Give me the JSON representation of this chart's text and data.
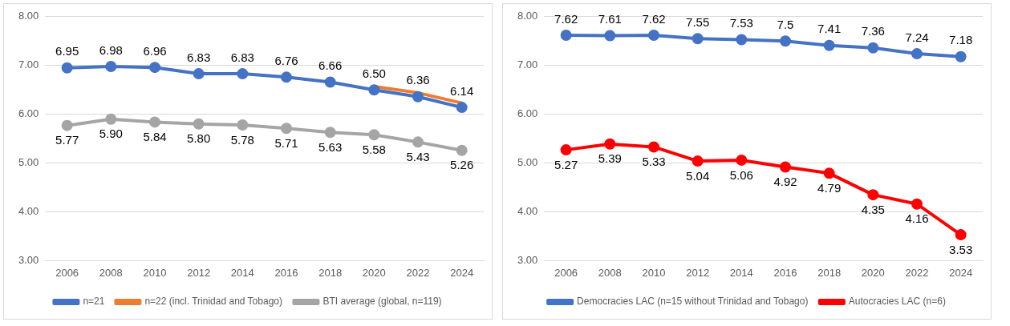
{
  "chart_data": [
    {
      "type": "line",
      "categories": [
        "2006",
        "2008",
        "2010",
        "2012",
        "2014",
        "2016",
        "2018",
        "2020",
        "2022",
        "2024"
      ],
      "ylim": [
        3,
        8
      ],
      "yticks": [
        {
          "value": 3,
          "label": "3.00"
        },
        {
          "value": 4,
          "label": "4.00"
        },
        {
          "value": 5,
          "label": "5.00"
        },
        {
          "value": 6,
          "label": "6.00"
        },
        {
          "value": 7,
          "label": "7.00"
        },
        {
          "value": 8,
          "label": "8.00"
        }
      ],
      "grid": "y",
      "legend": "bottom",
      "marker": "circle",
      "line_style": "solid",
      "series": [
        {
          "name": "n=21",
          "color": "#4472c4",
          "values": [
            6.95,
            6.98,
            6.96,
            6.83,
            6.83,
            6.76,
            6.66,
            6.5,
            6.36,
            6.14
          ],
          "value_labels": [
            "6.95",
            "6.98",
            "6.96",
            "6.83",
            "6.83",
            "6.76",
            "6.66",
            "6.50",
            "6.36",
            "6.14"
          ]
        },
        {
          "name": "n=22 (incl. Trinidad and Tobago)",
          "color": "#ed7d31",
          "marker": "none",
          "values": [
            null,
            null,
            null,
            null,
            null,
            null,
            null,
            6.57,
            6.44,
            6.23
          ]
        },
        {
          "name": "BTI average (global, n=119)",
          "color": "#a5a5a5",
          "values": [
            5.77,
            5.9,
            5.84,
            5.8,
            5.78,
            5.71,
            5.63,
            5.58,
            5.43,
            5.26
          ],
          "value_labels": [
            "5.77",
            "5.90",
            "5.84",
            "5.80",
            "5.78",
            "5.71",
            "5.63",
            "5.58",
            "5.43",
            "5.26"
          ]
        }
      ]
    },
    {
      "type": "line",
      "categories": [
        "2006",
        "2008",
        "2010",
        "2012",
        "2014",
        "2016",
        "2018",
        "2020",
        "2022",
        "2024"
      ],
      "ylim": [
        3,
        8
      ],
      "yticks": [
        {
          "value": 3,
          "label": "3.00"
        },
        {
          "value": 4,
          "label": "4.00"
        },
        {
          "value": 5,
          "label": "5.00"
        },
        {
          "value": 6,
          "label": "6.00"
        },
        {
          "value": 7,
          "label": "7.00"
        },
        {
          "value": 8,
          "label": "8.00"
        }
      ],
      "grid": "y",
      "legend": "bottom",
      "marker": "circle",
      "line_style": "solid",
      "series": [
        {
          "name": "Democracies LAC (n=15 without Trinidad and Tobago)",
          "color": "#4472c4",
          "values": [
            7.62,
            7.61,
            7.62,
            7.55,
            7.53,
            7.5,
            7.41,
            7.36,
            7.24,
            7.18
          ],
          "value_labels": [
            "7.62",
            "7.61",
            "7.62",
            "7.55",
            "7.53",
            "7.5",
            "7.41",
            "7.36",
            "7.24",
            "7.18"
          ]
        },
        {
          "name": "Autocracies LAC (n=6)",
          "color": "#ff0000",
          "values": [
            5.27,
            5.39,
            5.33,
            5.04,
            5.06,
            4.92,
            4.79,
            4.35,
            4.16,
            3.53
          ],
          "value_labels": [
            "5.27",
            "5.39",
            "5.33",
            "5.04",
            "5.06",
            "4.92",
            "4.79",
            "4.35",
            "4.16",
            "3.53"
          ]
        }
      ]
    }
  ]
}
